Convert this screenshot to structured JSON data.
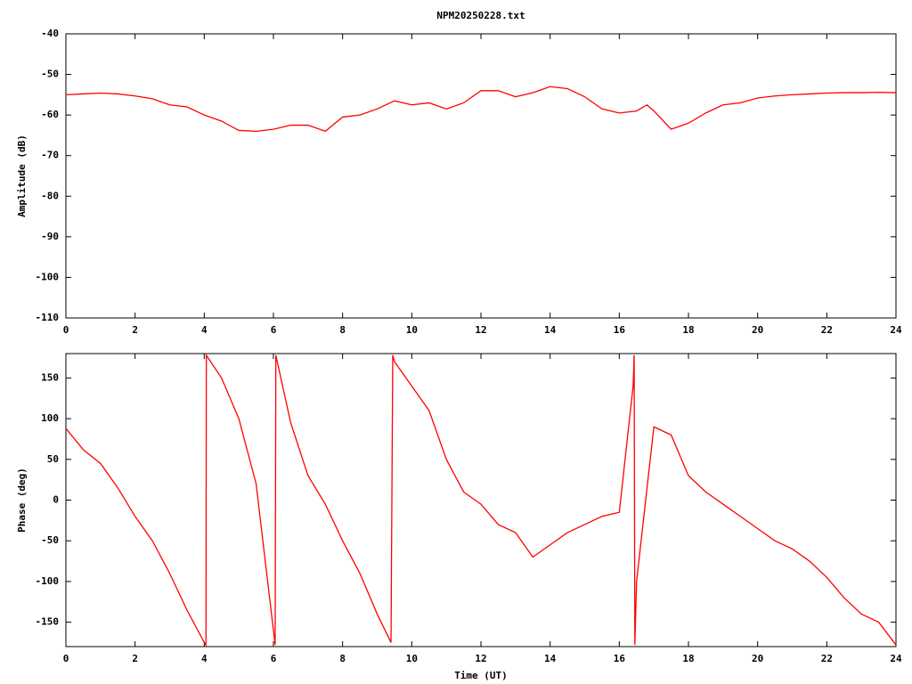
{
  "chart_data": [
    {
      "type": "line",
      "title": "NPM20250228.txt",
      "ylabel": "Amplitude (dB)",
      "color": "#ff0000",
      "x": [
        0,
        0.5,
        1,
        1.5,
        2,
        2.5,
        3,
        3.5,
        4,
        4.5,
        5,
        5.5,
        6,
        6.5,
        7,
        7.5,
        8,
        8.5,
        9,
        9.5,
        10,
        10.5,
        11,
        11.5,
        12,
        12.5,
        13,
        13.5,
        14,
        14.5,
        15,
        15.5,
        16,
        16.5,
        16.8,
        17,
        17.5,
        18,
        18.5,
        19,
        19.5,
        20,
        20.5,
        21,
        21.5,
        22,
        22.5,
        23,
        23.5,
        24
      ],
      "values": [
        -55,
        -54.8,
        -54.6,
        -54.8,
        -55.3,
        -56,
        -57.5,
        -58,
        -60,
        -61.5,
        -63.8,
        -64,
        -63.5,
        -62.5,
        -62.5,
        -64,
        -60.5,
        -60,
        -58.5,
        -56.5,
        -57.5,
        -57,
        -58.5,
        -57,
        -54,
        -54,
        -55.5,
        -54.5,
        -53,
        -53.5,
        -55.5,
        -58.5,
        -59.5,
        -59,
        -57.5,
        -59,
        -63.5,
        -62,
        -59.5,
        -57.5,
        -57,
        -55.8,
        -55.3,
        -55,
        -54.8,
        -54.6,
        -54.5,
        -54.5,
        -54.4,
        -54.5
      ],
      "xlim": [
        0,
        24
      ],
      "xticks": [
        0,
        2,
        4,
        6,
        8,
        10,
        12,
        14,
        16,
        18,
        20,
        22,
        24
      ],
      "ylim": [
        -110,
        -40
      ],
      "yticks": [
        -40,
        -50,
        -60,
        -70,
        -80,
        -90,
        -100,
        -110
      ]
    },
    {
      "type": "line",
      "xlabel": "Time (UT)",
      "ylabel": "Phase (deg)",
      "color": "#ff0000",
      "x": [
        0,
        0.5,
        1,
        1.5,
        2,
        2.5,
        3,
        3.5,
        4,
        4.05,
        4.06,
        4.5,
        5,
        5.5,
        6,
        6.05,
        6.07,
        6.5,
        7,
        7.5,
        8,
        8.5,
        9,
        9.4,
        9.45,
        9.5,
        10,
        10.5,
        11,
        11.5,
        12,
        12.5,
        13,
        13.5,
        14,
        14.5,
        15,
        15.5,
        16,
        16.4,
        16.43,
        16.45,
        16.5,
        17,
        17.5,
        18,
        18.5,
        19,
        19.5,
        20,
        20.5,
        21,
        21.5,
        22,
        22.5,
        23,
        23.5,
        24
      ],
      "values": [
        88,
        62,
        45,
        15,
        -20,
        -50,
        -90,
        -135,
        -175,
        -178,
        178,
        150,
        100,
        20,
        -160,
        -178,
        178,
        95,
        30,
        -5,
        -50,
        -90,
        -140,
        -175,
        178,
        170,
        140,
        110,
        50,
        10,
        -5,
        -30,
        -40,
        -70,
        -55,
        -40,
        -30,
        -20,
        -15,
        140,
        178,
        -178,
        -100,
        90,
        80,
        30,
        10,
        -5,
        -20,
        -35,
        -50,
        -60,
        -75,
        -95,
        -120,
        -140,
        -150,
        -178
      ],
      "xlim": [
        0,
        24
      ],
      "xticks": [
        0,
        2,
        4,
        6,
        8,
        10,
        12,
        14,
        16,
        18,
        20,
        22,
        24
      ],
      "ylim": [
        -180,
        180
      ],
      "yticks": [
        150,
        100,
        50,
        0,
        -50,
        -100,
        -150
      ]
    }
  ]
}
